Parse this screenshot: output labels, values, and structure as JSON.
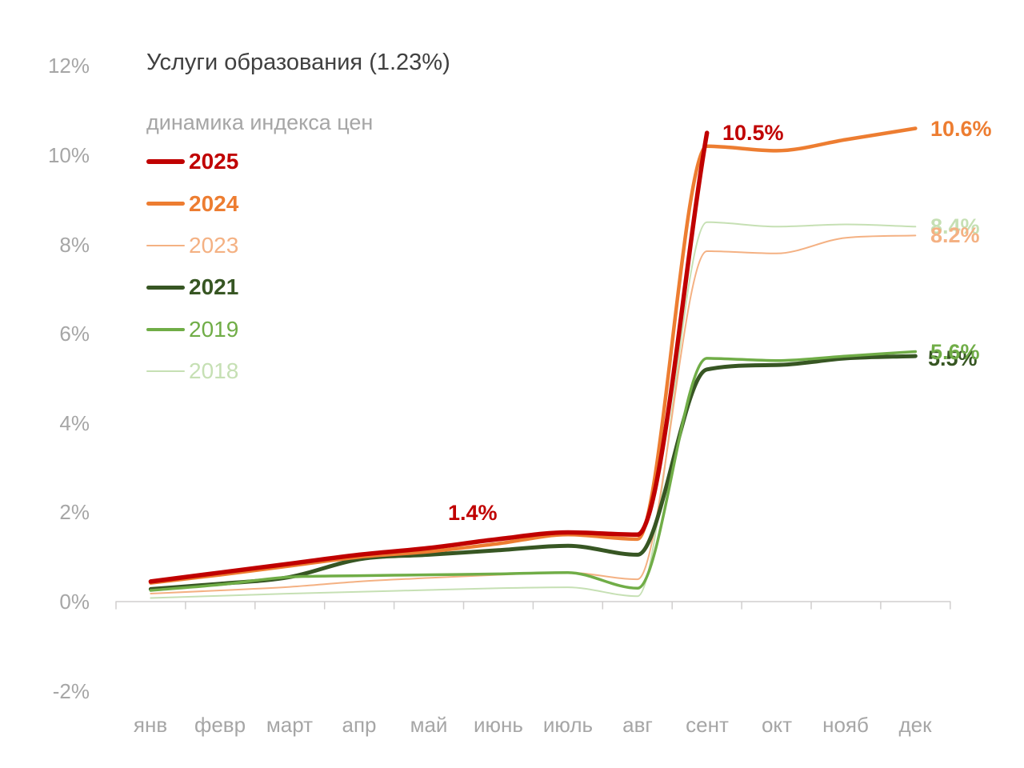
{
  "title": "Услуги образования (1.23%)",
  "subtitle": "динамика индекса цен",
  "axis": {
    "y_tick_labels": [
      "12%",
      "10%",
      "8%",
      "6%",
      "4%",
      "2%",
      "0%",
      "-2%"
    ],
    "y_tick_values": [
      12,
      10,
      8,
      6,
      4,
      2,
      0,
      -2
    ],
    "x_labels": [
      "янв",
      "февр",
      "март",
      "апр",
      "май",
      "июнь",
      "июль",
      "авг",
      "сент",
      "окт",
      "нояб",
      "дек"
    ]
  },
  "colors": {
    "title_text": "#404040",
    "axis_text": "#a6a6a6",
    "axis_line": "#d0cece",
    "background": "#ffffff"
  },
  "chart_data": {
    "type": "line",
    "title": "Услуги образования (1.23%)",
    "subtitle": "динамика индекса цен",
    "xlabel": "",
    "ylabel": "",
    "ylim": [
      -2,
      12
    ],
    "grid": false,
    "legend_position": "top-left",
    "x": [
      "янв",
      "февр",
      "март",
      "апр",
      "май",
      "июнь",
      "июль",
      "авг",
      "сент",
      "окт",
      "нояб",
      "дек"
    ],
    "series": [
      {
        "name": "2025",
        "color": "#C00000",
        "line_width": 5.5,
        "bold": true,
        "values": [
          0.45,
          0.65,
          0.85,
          1.05,
          1.2,
          1.4,
          1.55,
          1.5,
          10.5
        ],
        "end_label": "10.5%",
        "mid_label": "1.4%"
      },
      {
        "name": "2024",
        "color": "#ED7D31",
        "line_width": 4.5,
        "bold": true,
        "values": [
          0.42,
          0.6,
          0.8,
          1.0,
          1.12,
          1.3,
          1.5,
          1.4,
          10.2,
          10.1,
          10.35,
          10.6
        ],
        "end_label": "10.6%"
      },
      {
        "name": "2023",
        "color": "#F4B183",
        "line_width": 2,
        "bold": false,
        "values": [
          0.18,
          0.25,
          0.33,
          0.45,
          0.53,
          0.6,
          0.65,
          0.5,
          7.85,
          7.8,
          8.15,
          8.2
        ],
        "end_label": "8.2%"
      },
      {
        "name": "2021",
        "color": "#375623",
        "line_width": 5,
        "bold": true,
        "values": [
          0.28,
          0.4,
          0.55,
          0.95,
          1.05,
          1.15,
          1.25,
          1.05,
          5.2,
          5.3,
          5.45,
          5.5
        ],
        "end_label": "5.5%"
      },
      {
        "name": "2019",
        "color": "#70AD47",
        "line_width": 3.5,
        "bold": false,
        "values": [
          0.25,
          0.38,
          0.55,
          0.58,
          0.6,
          0.62,
          0.65,
          0.3,
          5.45,
          5.4,
          5.5,
          5.6
        ],
        "end_label": "5.6%"
      },
      {
        "name": "2018",
        "color": "#C6E0B4",
        "line_width": 2,
        "bold": false,
        "values": [
          0.08,
          0.13,
          0.18,
          0.22,
          0.26,
          0.3,
          0.32,
          0.12,
          8.5,
          8.4,
          8.45,
          8.4
        ],
        "end_label": "8.4%"
      }
    ]
  }
}
